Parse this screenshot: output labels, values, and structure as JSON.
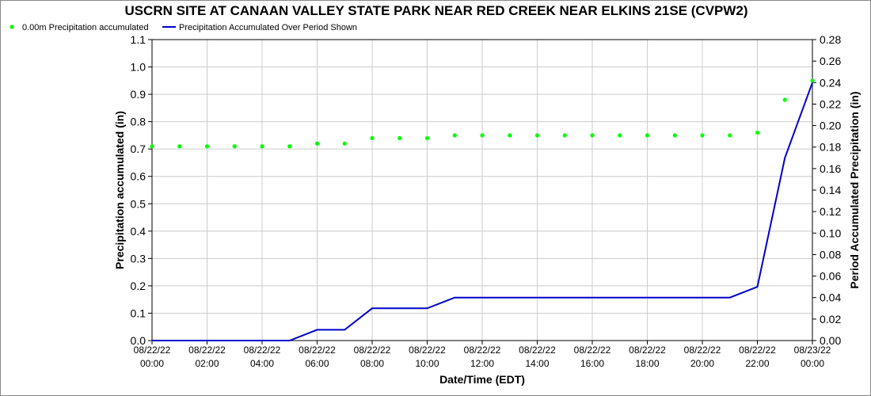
{
  "chart_data": {
    "type": "line",
    "title": "USCRN SITE AT CANAAN VALLEY STATE PARK NEAR RED CREEK NEAR ELKINS 21SE (CVPW2)",
    "xlabel": "Date/Time (EDT)",
    "ylabel_left": "Precipitation accumulated (in)",
    "ylabel_right": "Period Accumulated Precipitation (in)",
    "ylim_left": [
      0,
      1.1
    ],
    "ylim_right": [
      0,
      0.28
    ],
    "yticks_left": [
      "0.0",
      "0.1",
      "0.2",
      "0.3",
      "0.4",
      "0.5",
      "0.6",
      "0.7",
      "0.8",
      "0.9",
      "1.0",
      "1.1"
    ],
    "yticks_right": [
      "0.00",
      "0.02",
      "0.04",
      "0.06",
      "0.08",
      "0.10",
      "0.12",
      "0.14",
      "0.16",
      "0.18",
      "0.20",
      "0.22",
      "0.24",
      "0.26",
      "0.28"
    ],
    "xticks": [
      {
        "hour": 0,
        "date": "08/22/22",
        "time": "00:00"
      },
      {
        "hour": 2,
        "date": "08/22/22",
        "time": "02:00"
      },
      {
        "hour": 4,
        "date": "08/22/22",
        "time": "04:00"
      },
      {
        "hour": 6,
        "date": "08/22/22",
        "time": "06:00"
      },
      {
        "hour": 8,
        "date": "08/22/22",
        "time": "08:00"
      },
      {
        "hour": 10,
        "date": "08/22/22",
        "time": "10:00"
      },
      {
        "hour": 12,
        "date": "08/22/22",
        "time": "12:00"
      },
      {
        "hour": 14,
        "date": "08/22/22",
        "time": "14:00"
      },
      {
        "hour": 16,
        "date": "08/22/22",
        "time": "16:00"
      },
      {
        "hour": 18,
        "date": "08/22/22",
        "time": "18:00"
      },
      {
        "hour": 20,
        "date": "08/22/22",
        "time": "20:00"
      },
      {
        "hour": 22,
        "date": "08/22/22",
        "time": "22:00"
      },
      {
        "hour": 24,
        "date": "08/23/22",
        "time": "00:00"
      }
    ],
    "legend_placement": "top-left",
    "grid": true,
    "series": [
      {
        "name": "0.00m Precipitation accumulated",
        "axis": "left",
        "style": "scatter",
        "color": "#00ff00",
        "x": [
          0,
          1,
          2,
          3,
          4,
          5,
          6,
          7,
          8,
          9,
          10,
          11,
          12,
          13,
          14,
          15,
          16,
          17,
          18,
          19,
          20,
          21,
          22,
          23,
          24
        ],
        "values": [
          0.71,
          0.71,
          0.71,
          0.71,
          0.71,
          0.71,
          0.72,
          0.72,
          0.74,
          0.74,
          0.74,
          0.75,
          0.75,
          0.75,
          0.75,
          0.75,
          0.75,
          0.75,
          0.75,
          0.75,
          0.75,
          0.75,
          0.76,
          0.88,
          0.95
        ]
      },
      {
        "name": "Precipitation Accumulated Over Period Shown",
        "axis": "right",
        "style": "line",
        "color": "#0000cc",
        "x": [
          0,
          1,
          2,
          3,
          4,
          5,
          6,
          7,
          8,
          9,
          10,
          11,
          12,
          13,
          14,
          15,
          16,
          17,
          18,
          19,
          20,
          21,
          22,
          23,
          24
        ],
        "values": [
          0.0,
          0.0,
          0.0,
          0.0,
          0.0,
          0.0,
          0.01,
          0.01,
          0.03,
          0.03,
          0.03,
          0.04,
          0.04,
          0.04,
          0.04,
          0.04,
          0.04,
          0.04,
          0.04,
          0.04,
          0.04,
          0.04,
          0.05,
          0.17,
          0.24
        ]
      }
    ]
  }
}
